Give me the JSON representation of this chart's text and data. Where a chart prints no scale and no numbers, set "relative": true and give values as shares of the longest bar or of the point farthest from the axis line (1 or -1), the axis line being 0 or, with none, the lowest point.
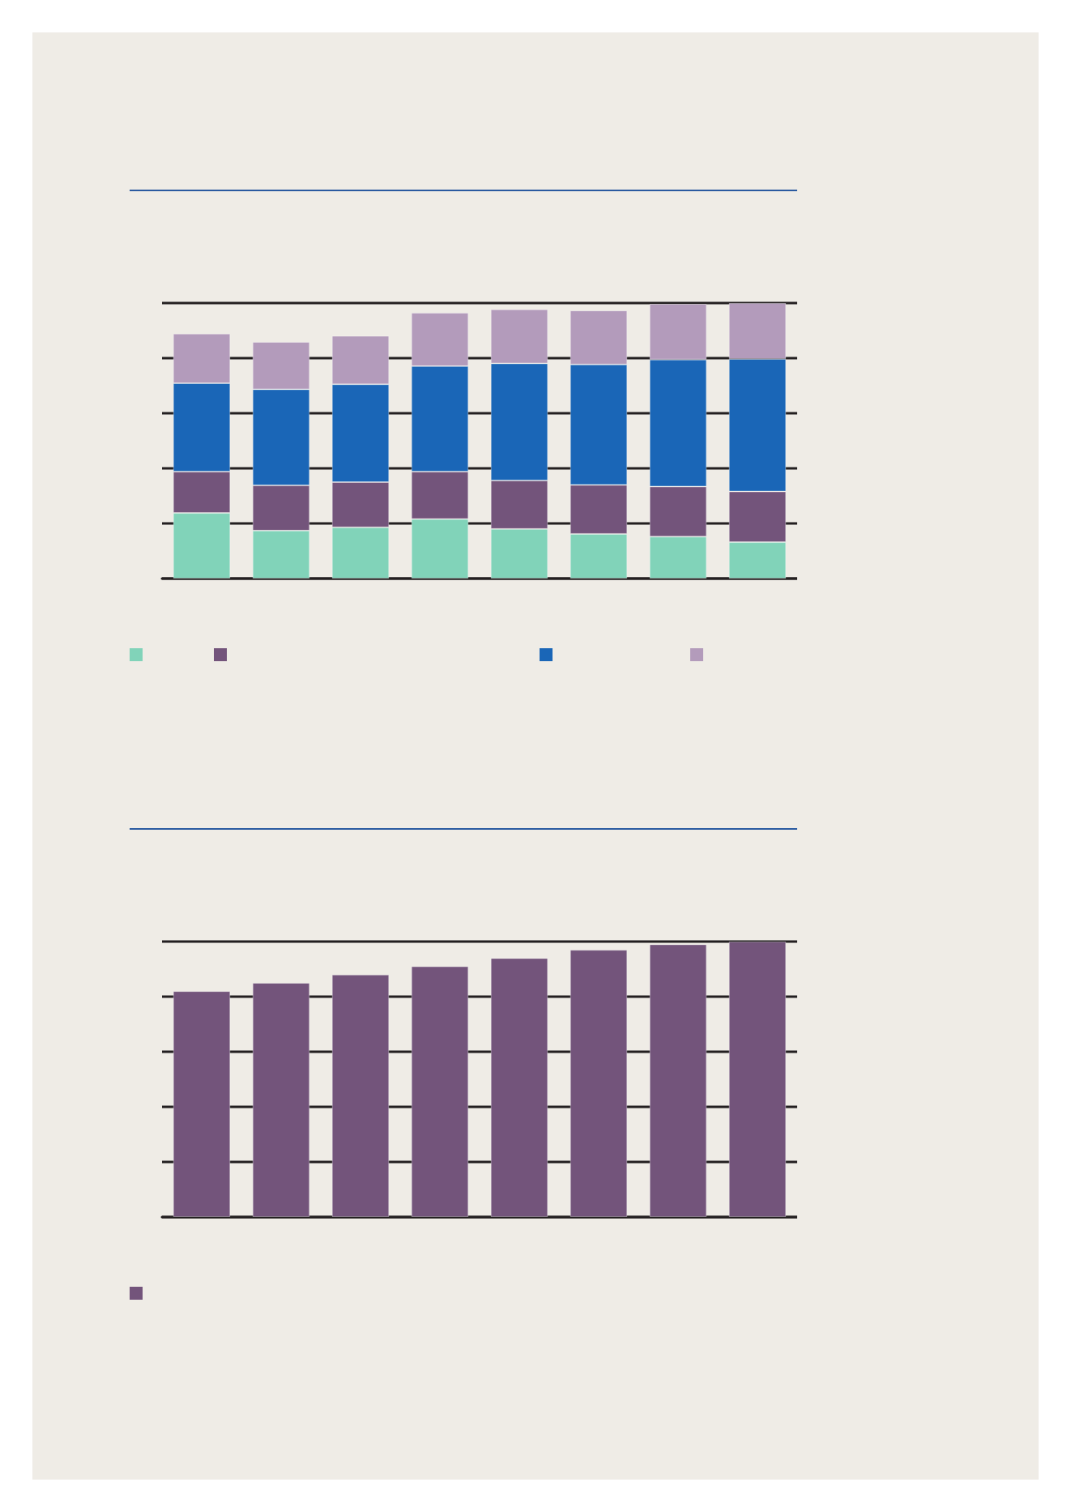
{
  "chart_data": [
    {
      "type": "bar",
      "relative": true,
      "stacked": true,
      "grid": "y",
      "categories": [
        null,
        null,
        null,
        null,
        null,
        null,
        null,
        null
      ],
      "series": [
        {
          "color": "#81d3b9",
          "values": [
            0.238,
            0.174,
            0.186,
            0.216,
            0.18,
            0.162,
            0.152,
            0.132
          ]
        },
        {
          "color": "#73547b",
          "values": [
            0.15,
            0.164,
            0.164,
            0.172,
            0.176,
            0.178,
            0.182,
            0.184
          ]
        },
        {
          "color": "#1a66b7",
          "values": [
            0.321,
            0.349,
            0.355,
            0.383,
            0.425,
            0.437,
            0.461,
            0.481
          ]
        },
        {
          "color": "#b39bbb",
          "values": [
            0.18,
            0.172,
            0.176,
            0.194,
            0.196,
            0.196,
            0.202,
            0.203
          ]
        }
      ]
    },
    {
      "type": "bar",
      "relative": true,
      "grid": "y",
      "categories": [
        null,
        null,
        null,
        null,
        null,
        null,
        null,
        null
      ],
      "series": [
        {
          "color": "#73547b",
          "values": [
            0.82,
            0.85,
            0.88,
            0.91,
            0.94,
            0.97,
            0.99,
            1
          ]
        }
      ]
    }
  ]
}
